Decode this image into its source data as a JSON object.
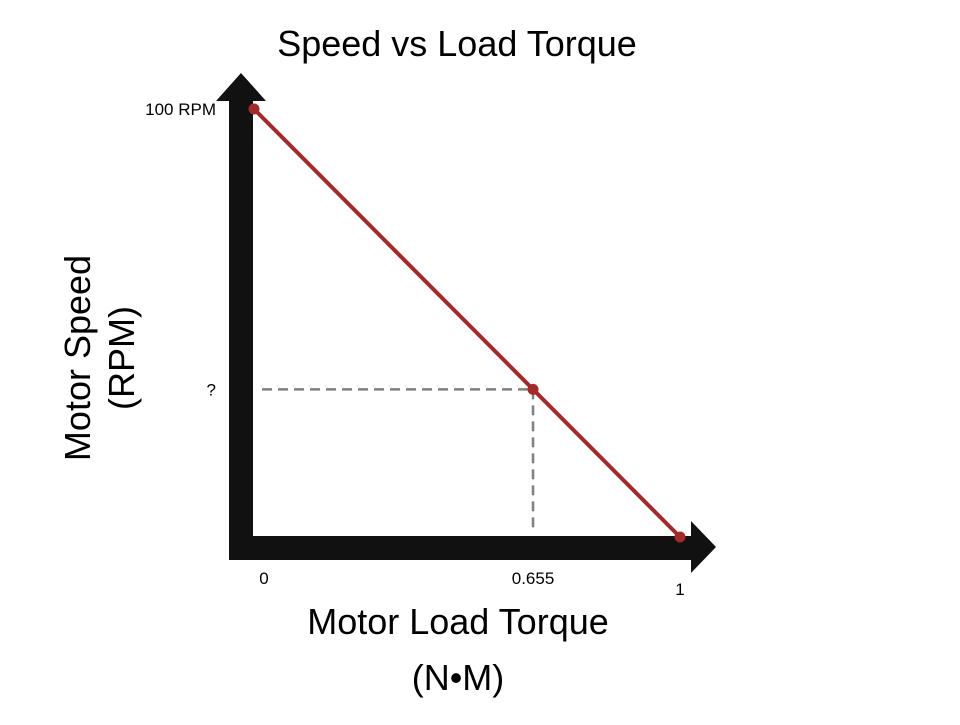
{
  "chart_data": {
    "type": "line",
    "title": "Speed vs Load Torque",
    "ylabel_line1": "Motor Speed",
    "ylabel_line2": "(RPM)",
    "xlabel_line1": "Motor Load Torque",
    "xlabel_line2": "(N•M)",
    "xlim": [
      0,
      1
    ],
    "ylim": [
      0,
      100
    ],
    "x_tick_labels": [
      {
        "x": 0,
        "label": "0"
      },
      {
        "x": 0.655,
        "label": "0.655"
      },
      {
        "x": 1,
        "label": "1"
      }
    ],
    "y_tick_labels": [
      {
        "y": 100,
        "label": "100 RPM"
      },
      {
        "y": 34.5,
        "label": "?"
      }
    ],
    "series": [
      {
        "x": [
          0,
          1
        ],
        "y": [
          100,
          0
        ]
      }
    ],
    "markers": [
      {
        "x": 0,
        "y": 100
      },
      {
        "x": 0.655,
        "y": 34.5
      },
      {
        "x": 1,
        "y": 0
      }
    ],
    "reference_point": {
      "x": 0.655,
      "y": 34.5
    },
    "grid": false,
    "colors": {
      "line": "#A32A2A",
      "axis": "#111111",
      "guide": "#808080"
    }
  }
}
